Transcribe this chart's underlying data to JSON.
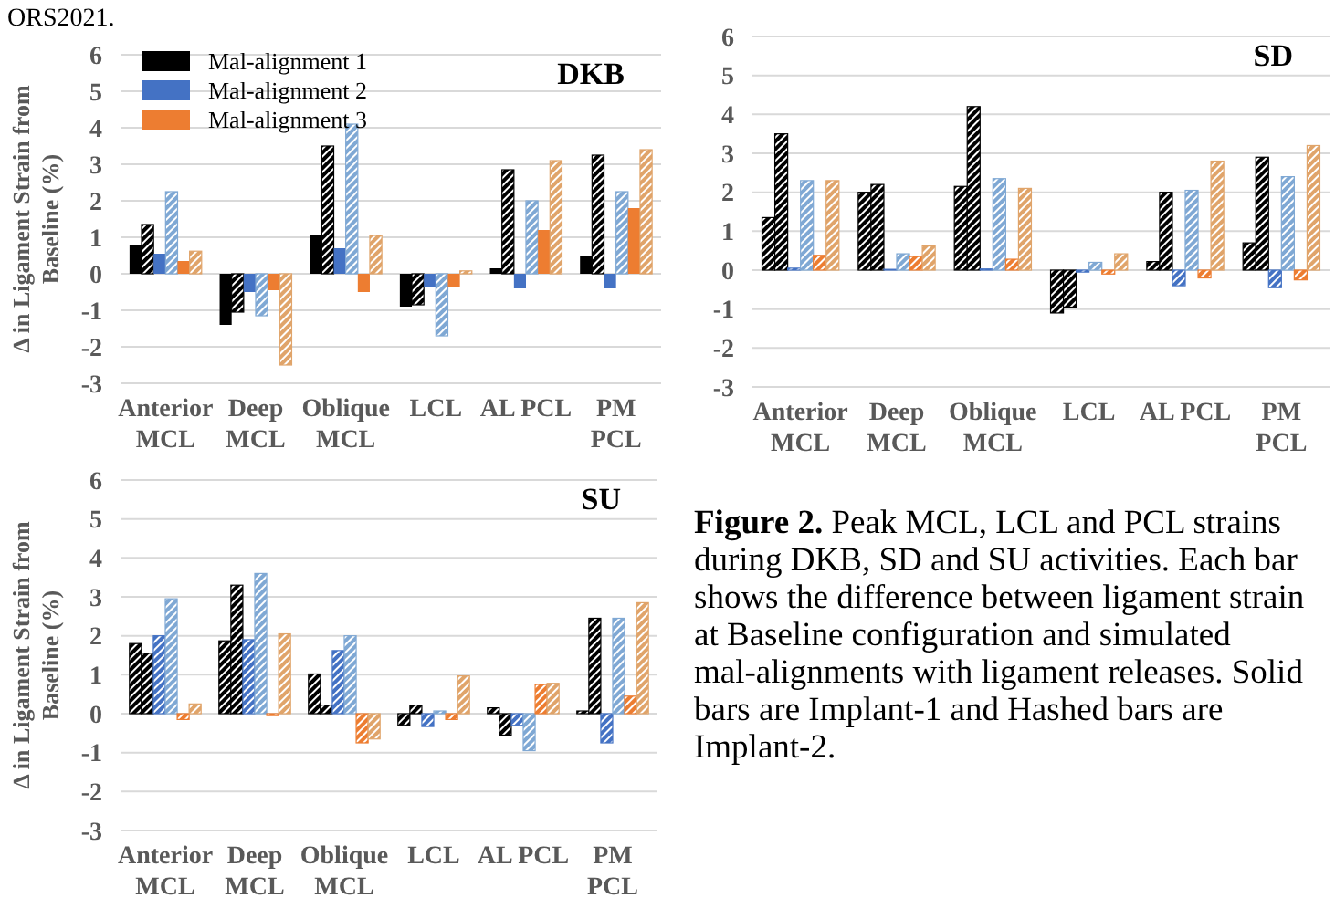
{
  "chart_data": [
    {
      "type": "bar",
      "title": "DKB",
      "ylabel": "Δ in Ligament Strain from\nBaseline (%)",
      "annotations": [
        "ORS2021."
      ],
      "categories": [
        "Anterior\nMCL",
        "Deep\nMCL",
        "Oblique\nMCL",
        "LCL",
        "AL  PCL",
        "PM\nPCL"
      ],
      "ylim": [
        -3,
        6
      ],
      "yticks": [
        -3,
        -2,
        -1,
        0,
        1,
        2,
        3,
        4,
        5,
        6
      ],
      "grid": "y",
      "legend": "top left",
      "series": [
        {
          "name": "Mal-alignment  1",
          "color": "#000000",
          "values": [
            0.8,
            -1.4,
            1.05,
            -0.9,
            0.15,
            0.5
          ]
        },
        {
          "color": "#000000",
          "values": [
            1.35,
            -1.05,
            3.5,
            -0.85,
            2.85,
            3.25
          ]
        },
        {
          "name": "Mal-alignment  2",
          "color": "#4472c4",
          "values": [
            0.55,
            -0.5,
            0.7,
            -0.35,
            -0.4,
            -0.4
          ]
        },
        {
          "color": "#7fa8d4",
          "values": [
            2.25,
            -1.15,
            4.1,
            -1.7,
            2.0,
            2.25
          ]
        },
        {
          "name": "Mal-alignment  3",
          "color": "#ed7d31",
          "values": [
            0.35,
            -0.45,
            -0.5,
            -0.35,
            1.2,
            1.8
          ]
        },
        {
          "color": "#e0a46a",
          "values": [
            0.62,
            -2.5,
            1.05,
            0.08,
            3.1,
            3.4
          ]
        }
      ]
    },
    {
      "type": "bar",
      "title": "SD",
      "categories": [
        "Anterior\nMCL",
        "Deep\nMCL",
        "Oblique\nMCL",
        "LCL",
        "AL  PCL",
        "PM\nPCL"
      ],
      "ylim": [
        -3,
        6
      ],
      "yticks": [
        -3,
        -2,
        -1,
        0,
        1,
        2,
        3,
        4,
        5,
        6
      ],
      "grid": "y",
      "series": [
        {
          "color": "#000000",
          "values": [
            1.35,
            2.0,
            2.15,
            -1.1,
            0.22,
            0.7
          ]
        },
        {
          "color": "#000000",
          "values": [
            3.5,
            2.2,
            4.2,
            -0.95,
            2.0,
            2.9
          ]
        },
        {
          "color": "#4472c4",
          "values": [
            0.05,
            0.02,
            0.03,
            -0.05,
            -0.4,
            -0.45
          ]
        },
        {
          "color": "#7fa8d4",
          "values": [
            2.3,
            0.42,
            2.35,
            0.2,
            2.05,
            2.4
          ]
        },
        {
          "color": "#ed7d31",
          "values": [
            0.38,
            0.35,
            0.28,
            -0.1,
            -0.2,
            -0.25
          ]
        },
        {
          "color": "#e0a46a",
          "values": [
            2.3,
            0.62,
            2.1,
            0.42,
            2.8,
            3.2
          ]
        }
      ]
    },
    {
      "type": "bar",
      "title": "SU",
      "ylabel": "Δ in Ligament Strain from\nBaseline (%)",
      "categories": [
        "Anterior\nMCL",
        "Deep\nMCL",
        "Oblique\nMCL",
        "LCL",
        "AL  PCL",
        "PM\nPCL"
      ],
      "ylim": [
        -3,
        6
      ],
      "yticks": [
        -3,
        -2,
        -1,
        0,
        1,
        2,
        3,
        4,
        5,
        6
      ],
      "grid": "y",
      "series": [
        {
          "color": "#000000",
          "values": [
            1.8,
            1.87,
            1.02,
            -0.3,
            0.15,
            0.07
          ]
        },
        {
          "color": "#000000",
          "values": [
            1.55,
            3.3,
            0.22,
            0.22,
            -0.55,
            2.45
          ]
        },
        {
          "color": "#4472c4",
          "values": [
            2.0,
            1.9,
            1.62,
            -0.33,
            -0.3,
            -0.75
          ]
        },
        {
          "color": "#7fa8d4",
          "values": [
            2.95,
            3.6,
            2.0,
            0.07,
            -0.95,
            2.45
          ]
        },
        {
          "color": "#ed7d31",
          "values": [
            -0.15,
            -0.05,
            -0.75,
            -0.15,
            0.75,
            0.45
          ]
        },
        {
          "color": "#e0a46a",
          "values": [
            0.25,
            2.05,
            -0.65,
            0.97,
            0.78,
            2.85
          ]
        }
      ]
    },
    {
      "type": "other",
      "title": "Figure 2.",
      "annotations": [
        "Peak MCL, LCL and PCL strains during DKB, SD and SU activities. Each bar shows the difference between ligament strain at Baseline configuration and simulated mal-alignments with ligament releases. Solid bars are Implant-1 and Hashed bars are Implant-2."
      ]
    }
  ]
}
